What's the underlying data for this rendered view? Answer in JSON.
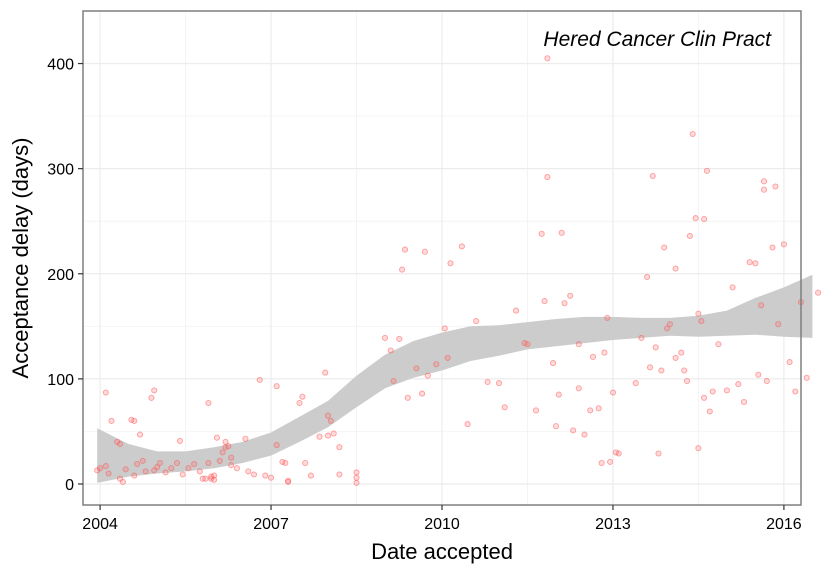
{
  "chart_data": {
    "type": "scatter",
    "annotation": "Hered Cancer Clin Pract",
    "xlabel": "Date accepted",
    "ylabel": "Acceptance delay (days)",
    "xlim": [
      2003.7,
      2016.3
    ],
    "ylim": [
      -20,
      450
    ],
    "x_ticks": [
      2004,
      2007,
      2010,
      2013,
      2016
    ],
    "y_ticks": [
      0,
      100,
      200,
      300,
      400
    ],
    "grid": true,
    "colors": {
      "points": "#ff5a5a",
      "ribbon": "#cccccc",
      "panel_border": "#7f7f7f",
      "grid": "#ececec"
    },
    "points": [
      [
        2003.95,
        13
      ],
      [
        2004.0,
        15
      ],
      [
        2004.1,
        87
      ],
      [
        2004.1,
        17
      ],
      [
        2004.15,
        10
      ],
      [
        2004.2,
        60
      ],
      [
        2004.3,
        40
      ],
      [
        2004.35,
        38
      ],
      [
        2004.35,
        5
      ],
      [
        2004.4,
        2
      ],
      [
        2004.45,
        14
      ],
      [
        2004.55,
        61
      ],
      [
        2004.6,
        60
      ],
      [
        2004.6,
        8
      ],
      [
        2004.65,
        19
      ],
      [
        2004.7,
        47
      ],
      [
        2004.75,
        22
      ],
      [
        2004.8,
        12
      ],
      [
        2004.9,
        82
      ],
      [
        2004.95,
        89
      ],
      [
        2004.95,
        13
      ],
      [
        2005.0,
        16
      ],
      [
        2005.05,
        20
      ],
      [
        2005.15,
        11
      ],
      [
        2005.25,
        15
      ],
      [
        2005.35,
        20
      ],
      [
        2005.4,
        41
      ],
      [
        2005.45,
        9
      ],
      [
        2005.55,
        15
      ],
      [
        2005.65,
        19
      ],
      [
        2005.75,
        12
      ],
      [
        2005.8,
        5
      ],
      [
        2005.85,
        5
      ],
      [
        2005.9,
        77
      ],
      [
        2005.9,
        20
      ],
      [
        2005.95,
        7
      ],
      [
        2005.95,
        5
      ],
      [
        2006.0,
        8
      ],
      [
        2006.0,
        4
      ],
      [
        2006.05,
        44
      ],
      [
        2006.1,
        22
      ],
      [
        2006.15,
        30
      ],
      [
        2006.2,
        35
      ],
      [
        2006.2,
        40
      ],
      [
        2006.25,
        36
      ],
      [
        2006.3,
        18
      ],
      [
        2006.3,
        25
      ],
      [
        2006.4,
        15
      ],
      [
        2006.55,
        43
      ],
      [
        2006.6,
        12
      ],
      [
        2006.7,
        9
      ],
      [
        2006.8,
        99
      ],
      [
        2006.9,
        8
      ],
      [
        2007.0,
        6
      ],
      [
        2007.1,
        93
      ],
      [
        2007.1,
        37
      ],
      [
        2007.2,
        21
      ],
      [
        2007.25,
        20
      ],
      [
        2007.3,
        3
      ],
      [
        2007.3,
        2
      ],
      [
        2007.5,
        77
      ],
      [
        2007.55,
        83
      ],
      [
        2007.6,
        20
      ],
      [
        2007.7,
        8
      ],
      [
        2007.85,
        45
      ],
      [
        2007.95,
        106
      ],
      [
        2008.0,
        65
      ],
      [
        2008.0,
        46
      ],
      [
        2008.05,
        60
      ],
      [
        2008.1,
        48
      ],
      [
        2008.2,
        35
      ],
      [
        2008.2,
        9
      ],
      [
        2008.5,
        11
      ],
      [
        2008.5,
        6
      ],
      [
        2008.5,
        1
      ],
      [
        2009.0,
        139
      ],
      [
        2009.1,
        127
      ],
      [
        2009.15,
        98
      ],
      [
        2009.25,
        138
      ],
      [
        2009.3,
        204
      ],
      [
        2009.35,
        223
      ],
      [
        2009.4,
        82
      ],
      [
        2009.55,
        110
      ],
      [
        2009.65,
        86
      ],
      [
        2009.7,
        221
      ],
      [
        2009.75,
        103
      ],
      [
        2009.9,
        114
      ],
      [
        2010.05,
        148
      ],
      [
        2010.1,
        120
      ],
      [
        2010.15,
        210
      ],
      [
        2010.35,
        226
      ],
      [
        2010.45,
        57
      ],
      [
        2010.6,
        155
      ],
      [
        2010.8,
        97
      ],
      [
        2011.0,
        96
      ],
      [
        2011.1,
        73
      ],
      [
        2011.3,
        165
      ],
      [
        2011.45,
        134
      ],
      [
        2011.5,
        133
      ],
      [
        2011.65,
        70
      ],
      [
        2011.75,
        238
      ],
      [
        2011.8,
        174
      ],
      [
        2011.85,
        405
      ],
      [
        2011.85,
        292
      ],
      [
        2011.95,
        115
      ],
      [
        2012.0,
        55
      ],
      [
        2012.05,
        85
      ],
      [
        2012.1,
        239
      ],
      [
        2012.15,
        172
      ],
      [
        2012.25,
        179
      ],
      [
        2012.3,
        51
      ],
      [
        2012.4,
        91
      ],
      [
        2012.4,
        133
      ],
      [
        2012.5,
        47
      ],
      [
        2012.6,
        70
      ],
      [
        2012.65,
        121
      ],
      [
        2012.75,
        72
      ],
      [
        2012.8,
        20
      ],
      [
        2012.85,
        125
      ],
      [
        2012.9,
        158
      ],
      [
        2012.95,
        21
      ],
      [
        2013.0,
        87
      ],
      [
        2013.05,
        30
      ],
      [
        2013.1,
        29
      ],
      [
        2013.4,
        96
      ],
      [
        2013.5,
        139
      ],
      [
        2013.6,
        197
      ],
      [
        2013.65,
        111
      ],
      [
        2013.7,
        293
      ],
      [
        2013.75,
        130
      ],
      [
        2013.8,
        29
      ],
      [
        2013.85,
        108
      ],
      [
        2013.9,
        225
      ],
      [
        2013.95,
        148
      ],
      [
        2014.0,
        152
      ],
      [
        2014.1,
        205
      ],
      [
        2014.1,
        120
      ],
      [
        2014.2,
        125
      ],
      [
        2014.25,
        108
      ],
      [
        2014.3,
        98
      ],
      [
        2014.35,
        236
      ],
      [
        2014.4,
        333
      ],
      [
        2014.45,
        253
      ],
      [
        2014.5,
        162
      ],
      [
        2014.5,
        34
      ],
      [
        2014.55,
        155
      ],
      [
        2014.6,
        252
      ],
      [
        2014.6,
        82
      ],
      [
        2014.65,
        298
      ],
      [
        2014.7,
        69
      ],
      [
        2014.75,
        88
      ],
      [
        2014.85,
        133
      ],
      [
        2015.0,
        89
      ],
      [
        2015.1,
        187
      ],
      [
        2015.2,
        95
      ],
      [
        2015.3,
        78
      ],
      [
        2015.4,
        211
      ],
      [
        2015.5,
        210
      ],
      [
        2015.55,
        104
      ],
      [
        2015.6,
        170
      ],
      [
        2015.65,
        288
      ],
      [
        2015.65,
        280
      ],
      [
        2015.7,
        98
      ],
      [
        2015.8,
        225
      ],
      [
        2015.85,
        283
      ],
      [
        2015.9,
        152
      ],
      [
        2016.0,
        228
      ],
      [
        2016.1,
        116
      ],
      [
        2016.2,
        88
      ],
      [
        2016.3,
        173
      ],
      [
        2016.4,
        101
      ],
      [
        2016.6,
        182
      ]
    ],
    "smooth": [
      {
        "x": 2003.95,
        "low": 1,
        "high": 53
      },
      {
        "x": 2004.5,
        "low": 7,
        "high": 38
      },
      {
        "x": 2005.0,
        "low": 10,
        "high": 31
      },
      {
        "x": 2005.5,
        "low": 12,
        "high": 31
      },
      {
        "x": 2006.0,
        "low": 15,
        "high": 35
      },
      {
        "x": 2006.5,
        "low": 20,
        "high": 40
      },
      {
        "x": 2007.0,
        "low": 27,
        "high": 49
      },
      {
        "x": 2007.5,
        "low": 40,
        "high": 64
      },
      {
        "x": 2008.0,
        "low": 54,
        "high": 79
      },
      {
        "x": 2008.5,
        "low": 73,
        "high": 103
      },
      {
        "x": 2009.0,
        "low": 91,
        "high": 123
      },
      {
        "x": 2009.5,
        "low": 101,
        "high": 136
      },
      {
        "x": 2010.0,
        "low": 108,
        "high": 144
      },
      {
        "x": 2010.5,
        "low": 117,
        "high": 150
      },
      {
        "x": 2011.0,
        "low": 122,
        "high": 151
      },
      {
        "x": 2011.5,
        "low": 128,
        "high": 154
      },
      {
        "x": 2012.0,
        "low": 131,
        "high": 157
      },
      {
        "x": 2012.5,
        "low": 134,
        "high": 159
      },
      {
        "x": 2013.0,
        "low": 137,
        "high": 159
      },
      {
        "x": 2013.5,
        "low": 139,
        "high": 158
      },
      {
        "x": 2014.0,
        "low": 141,
        "high": 158
      },
      {
        "x": 2014.5,
        "low": 140,
        "high": 160
      },
      {
        "x": 2015.0,
        "low": 141,
        "high": 165
      },
      {
        "x": 2015.5,
        "low": 142,
        "high": 177
      },
      {
        "x": 2016.0,
        "low": 140,
        "high": 187
      },
      {
        "x": 2016.5,
        "low": 139,
        "high": 199
      }
    ]
  }
}
